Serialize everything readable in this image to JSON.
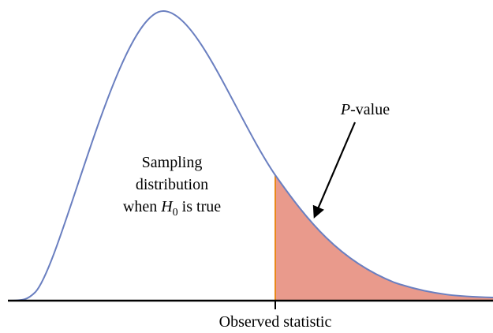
{
  "labels": {
    "sampling": {
      "line1": "Sampling",
      "line2": "distribution",
      "line3_pre": "when ",
      "line3_symbol": "H",
      "line3_sub": "0",
      "line3_post": " is true"
    },
    "pvalue": {
      "symbol": "P",
      "rest": "-value"
    },
    "observed": "Observed statistic"
  }
}
